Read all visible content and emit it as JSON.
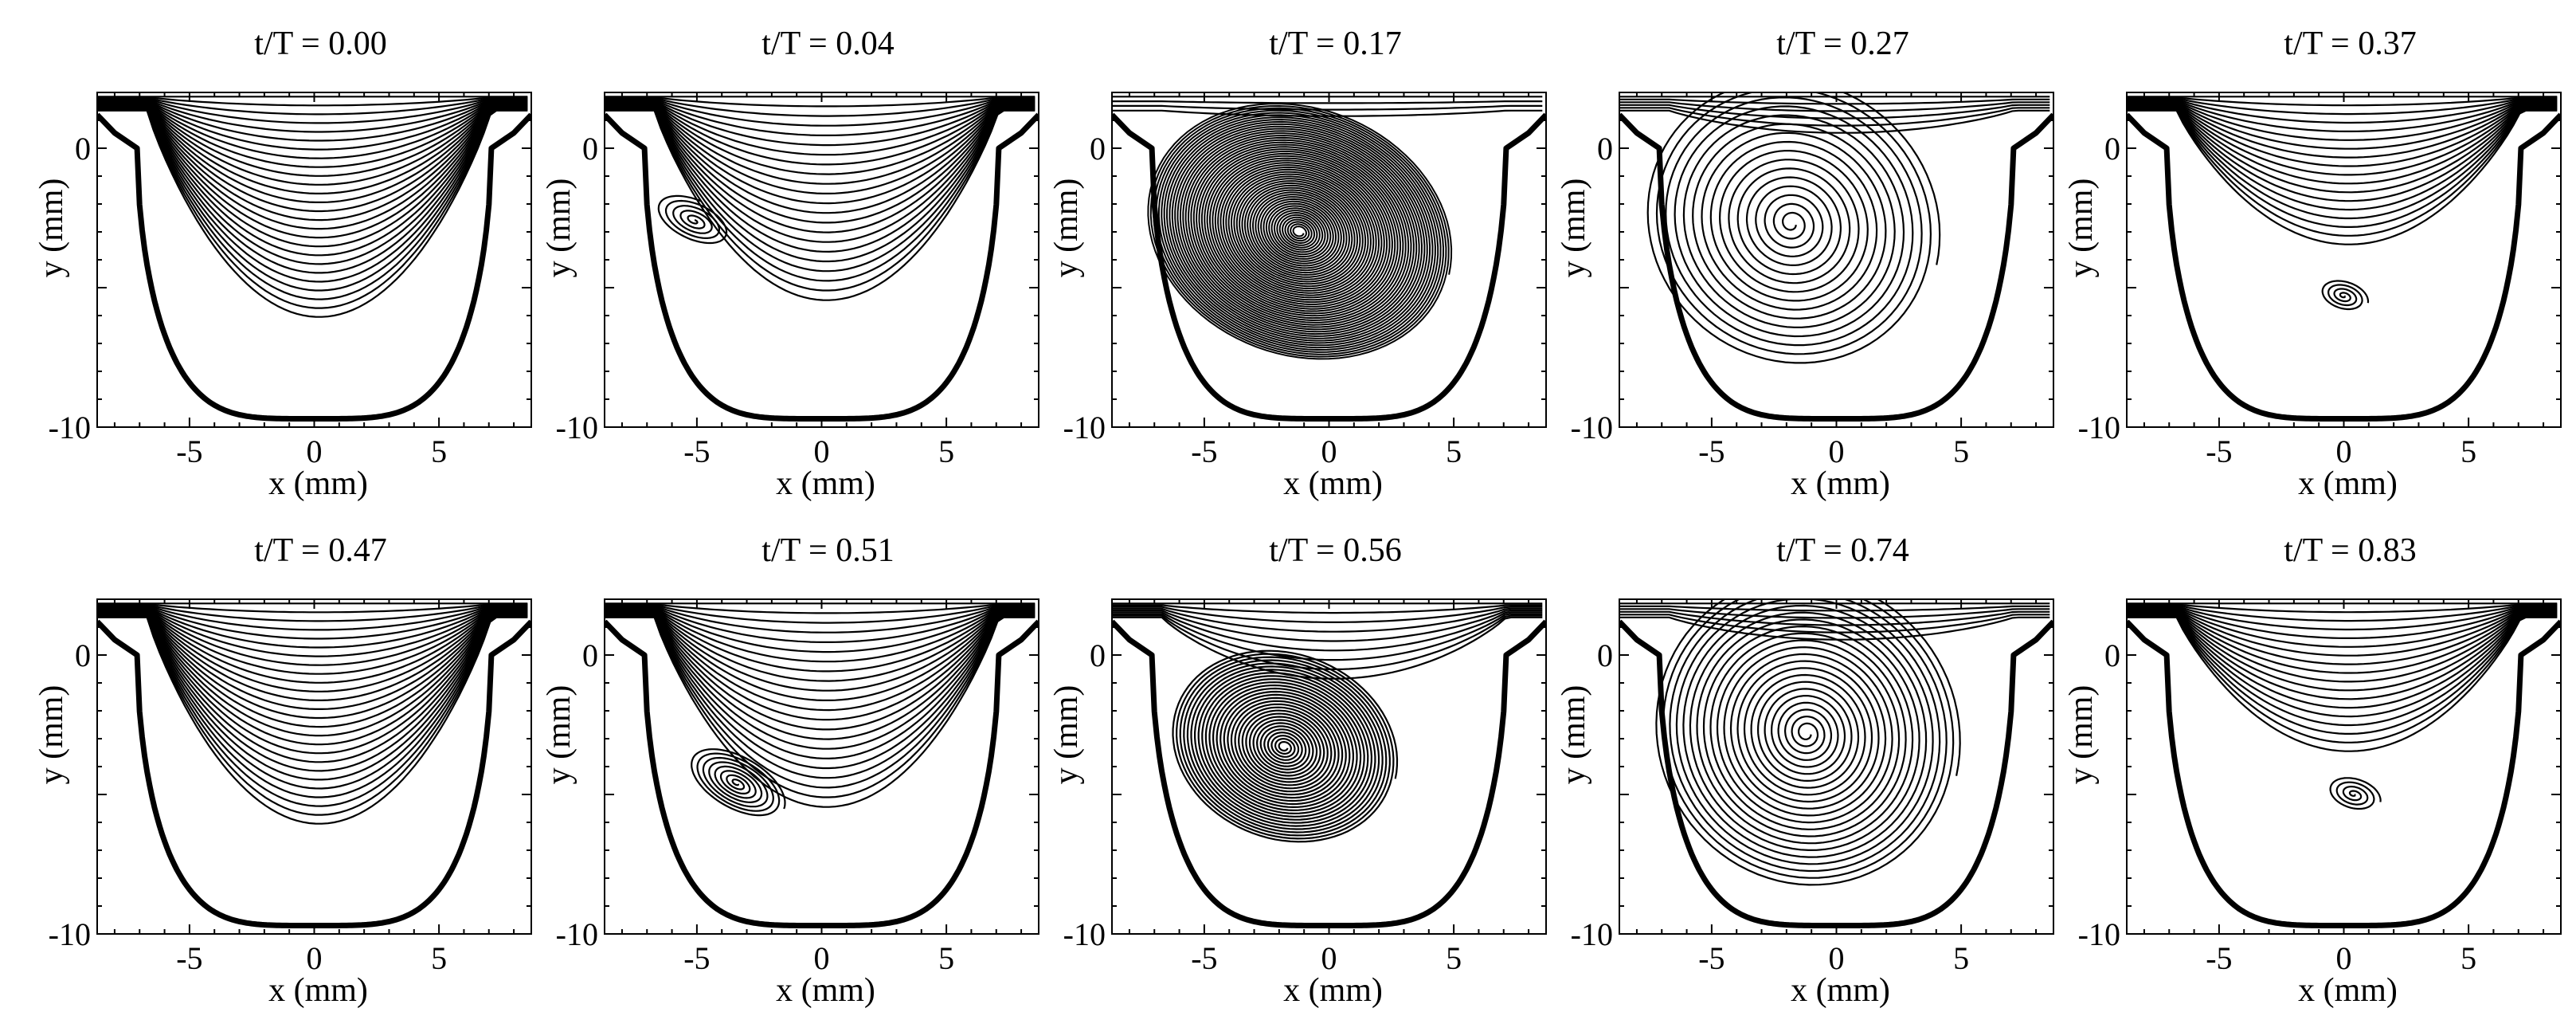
{
  "figure": {
    "description_free": true,
    "line_color": "#000000",
    "background_color": "#ffffff"
  },
  "axes": {
    "xlabel": "x (mm)",
    "ylabel": "y (mm)",
    "xlim": [
      -8.7,
      8.7
    ],
    "ylim": [
      -10,
      2
    ],
    "x_ticks": [
      -5,
      0,
      5
    ],
    "y_ticks": [
      0,
      -10
    ],
    "x_tick_labels": [
      "-5",
      "0",
      "5"
    ],
    "y_tick_labels": [
      "0",
      "-10"
    ]
  },
  "chart_data": [
    {
      "type": "streamline",
      "title": "t/T = 0.00",
      "pattern": "open",
      "vortex": null
    },
    {
      "type": "streamline",
      "title": "t/T = 0.04",
      "pattern": "small_vortex",
      "vortex": {
        "cx": -5.1,
        "cy": -2.6,
        "rx": 0.75,
        "ry": 1.6,
        "turns": 5
      }
    },
    {
      "type": "streamline",
      "title": "t/T = 0.17",
      "pattern": "dense_vortex",
      "vortex": {
        "cx": -1.2,
        "cy": -3.0,
        "rx": 6.2,
        "ry": 4.5,
        "turns": 55
      }
    },
    {
      "type": "streamline",
      "title": "t/T = 0.27",
      "pattern": "large_vortex",
      "vortex": {
        "cx": -1.8,
        "cy": -2.7,
        "rx": 6.0,
        "ry": 5.2,
        "turns": 16
      }
    },
    {
      "type": "streamline",
      "title": "t/T = 0.37",
      "pattern": "open_with_small_vortex",
      "vortex": {
        "cx": 0.0,
        "cy": -5.3,
        "rx": 1.0,
        "ry": 0.55,
        "turns": 4
      }
    },
    {
      "type": "streamline",
      "title": "t/T = 0.47",
      "pattern": "open",
      "vortex": null
    },
    {
      "type": "streamline",
      "title": "t/T = 0.51",
      "pattern": "tilted_vortex",
      "vortex": {
        "cx": -3.4,
        "cy": -4.6,
        "rx": 2.1,
        "ry": 1.0,
        "turns": 8
      }
    },
    {
      "type": "streamline",
      "title": "t/T = 0.56",
      "pattern": "dense_vortex_open_top",
      "vortex": {
        "cx": -1.8,
        "cy": -3.3,
        "rx": 4.6,
        "ry": 3.4,
        "turns": 30
      }
    },
    {
      "type": "streamline",
      "title": "t/T = 0.74",
      "pattern": "large_vortex",
      "vortex": {
        "cx": -1.2,
        "cy": -2.8,
        "rx": 6.2,
        "ry": 5.6,
        "turns": 22
      }
    },
    {
      "type": "streamline",
      "title": "t/T = 0.83",
      "pattern": "open_with_small_vortex",
      "vortex": {
        "cx": 0.4,
        "cy": -5.0,
        "rx": 1.1,
        "ry": 0.6,
        "turns": 4
      }
    }
  ]
}
